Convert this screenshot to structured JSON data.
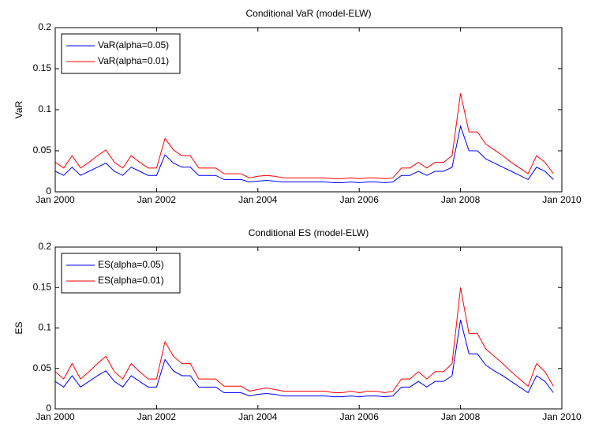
{
  "chart_data": [
    {
      "type": "line",
      "title": "Conditional VaR (model-ELW)",
      "y_label": "VaR",
      "x": [
        "2000-01",
        "2000-03",
        "2000-05",
        "2000-07",
        "2000-09",
        "2000-11",
        "2001-01",
        "2001-03",
        "2001-05",
        "2001-07",
        "2001-09",
        "2001-11",
        "2002-01",
        "2002-03",
        "2002-05",
        "2002-07",
        "2002-09",
        "2002-11",
        "2003-01",
        "2003-03",
        "2003-05",
        "2003-07",
        "2003-09",
        "2003-11",
        "2004-01",
        "2004-03",
        "2004-05",
        "2004-07",
        "2004-09",
        "2004-11",
        "2005-01",
        "2005-03",
        "2005-05",
        "2005-07",
        "2005-09",
        "2005-11",
        "2006-01",
        "2006-03",
        "2006-05",
        "2006-07",
        "2006-09",
        "2006-11",
        "2007-01",
        "2007-03",
        "2007-05",
        "2007-07",
        "2007-09",
        "2007-11",
        "2008-01",
        "2008-03",
        "2008-05",
        "2008-07",
        "2008-09",
        "2008-11",
        "2009-01",
        "2009-03",
        "2009-05",
        "2009-07",
        "2009-09",
        "2009-11"
      ],
      "series": [
        {
          "name": "VaR(alpha=0.05)",
          "color": "#0000ff",
          "values": [
            0.025,
            0.02,
            0.03,
            0.02,
            0.025,
            0.03,
            0.035,
            0.025,
            0.02,
            0.03,
            0.025,
            0.02,
            0.02,
            0.045,
            0.035,
            0.03,
            0.03,
            0.02,
            0.02,
            0.02,
            0.015,
            0.015,
            0.015,
            0.012,
            0.013,
            0.014,
            0.013,
            0.012,
            0.012,
            0.012,
            0.012,
            0.012,
            0.012,
            0.011,
            0.011,
            0.012,
            0.011,
            0.012,
            0.012,
            0.011,
            0.012,
            0.02,
            0.02,
            0.025,
            0.02,
            0.025,
            0.025,
            0.03,
            0.08,
            0.05,
            0.05,
            0.04,
            0.035,
            0.03,
            0.025,
            0.02,
            0.015,
            0.03,
            0.025,
            0.015
          ]
        },
        {
          "name": "VaR(alpha=0.01)",
          "color": "#ff0000",
          "values": [
            0.036,
            0.029,
            0.044,
            0.029,
            0.036,
            0.044,
            0.051,
            0.036,
            0.029,
            0.044,
            0.036,
            0.029,
            0.029,
            0.065,
            0.051,
            0.044,
            0.044,
            0.029,
            0.029,
            0.029,
            0.022,
            0.022,
            0.022,
            0.017,
            0.019,
            0.02,
            0.019,
            0.017,
            0.017,
            0.017,
            0.017,
            0.017,
            0.017,
            0.016,
            0.016,
            0.017,
            0.016,
            0.017,
            0.017,
            0.016,
            0.017,
            0.029,
            0.029,
            0.036,
            0.029,
            0.036,
            0.036,
            0.044,
            0.12,
            0.073,
            0.073,
            0.058,
            0.051,
            0.044,
            0.036,
            0.029,
            0.022,
            0.044,
            0.036,
            0.022
          ]
        }
      ],
      "xlim": [
        "2000-01",
        "2010-01"
      ],
      "xticks": [
        {
          "value": "2000-01",
          "label": "Jan 2000"
        },
        {
          "value": "2002-01",
          "label": "Jan 2002"
        },
        {
          "value": "2004-01",
          "label": "Jan 2004"
        },
        {
          "value": "2006-01",
          "label": "Jan 2006"
        },
        {
          "value": "2008-01",
          "label": "Jan 2008"
        },
        {
          "value": "2010-01",
          "label": "Jan 2010"
        }
      ],
      "ylim": [
        0,
        0.2
      ],
      "yticks": [
        0,
        0.05,
        0.1,
        0.15,
        0.2
      ],
      "legend": "upper left"
    },
    {
      "type": "line",
      "title": "Conditional ES (model-ELW)",
      "y_label": "ES",
      "x": [
        "2000-01",
        "2000-03",
        "2000-05",
        "2000-07",
        "2000-09",
        "2000-11",
        "2001-01",
        "2001-03",
        "2001-05",
        "2001-07",
        "2001-09",
        "2001-11",
        "2002-01",
        "2002-03",
        "2002-05",
        "2002-07",
        "2002-09",
        "2002-11",
        "2003-01",
        "2003-03",
        "2003-05",
        "2003-07",
        "2003-09",
        "2003-11",
        "2004-01",
        "2004-03",
        "2004-05",
        "2004-07",
        "2004-09",
        "2004-11",
        "2005-01",
        "2005-03",
        "2005-05",
        "2005-07",
        "2005-09",
        "2005-11",
        "2006-01",
        "2006-03",
        "2006-05",
        "2006-07",
        "2006-09",
        "2006-11",
        "2007-01",
        "2007-03",
        "2007-05",
        "2007-07",
        "2007-09",
        "2007-11",
        "2008-01",
        "2008-03",
        "2008-05",
        "2008-07",
        "2008-09",
        "2008-11",
        "2009-01",
        "2009-03",
        "2009-05",
        "2009-07",
        "2009-09",
        "2009-11"
      ],
      "series": [
        {
          "name": "ES(alpha=0.05)",
          "color": "#0000ff",
          "values": [
            0.034,
            0.027,
            0.041,
            0.027,
            0.034,
            0.041,
            0.047,
            0.034,
            0.027,
            0.041,
            0.034,
            0.027,
            0.027,
            0.061,
            0.047,
            0.041,
            0.041,
            0.027,
            0.027,
            0.027,
            0.02,
            0.02,
            0.02,
            0.016,
            0.018,
            0.019,
            0.018,
            0.016,
            0.016,
            0.016,
            0.016,
            0.016,
            0.016,
            0.015,
            0.015,
            0.016,
            0.015,
            0.016,
            0.016,
            0.015,
            0.016,
            0.027,
            0.027,
            0.034,
            0.027,
            0.034,
            0.034,
            0.041,
            0.11,
            0.068,
            0.068,
            0.054,
            0.047,
            0.041,
            0.034,
            0.027,
            0.02,
            0.041,
            0.034,
            0.02
          ]
        },
        {
          "name": "ES(alpha=0.01)",
          "color": "#ff0000",
          "values": [
            0.046,
            0.037,
            0.056,
            0.037,
            0.046,
            0.056,
            0.065,
            0.046,
            0.037,
            0.056,
            0.046,
            0.037,
            0.037,
            0.083,
            0.065,
            0.056,
            0.056,
            0.037,
            0.037,
            0.037,
            0.028,
            0.028,
            0.028,
            0.022,
            0.024,
            0.026,
            0.024,
            0.022,
            0.022,
            0.022,
            0.022,
            0.022,
            0.022,
            0.02,
            0.02,
            0.022,
            0.02,
            0.022,
            0.022,
            0.02,
            0.022,
            0.037,
            0.037,
            0.046,
            0.037,
            0.046,
            0.046,
            0.056,
            0.15,
            0.093,
            0.093,
            0.074,
            0.065,
            0.056,
            0.046,
            0.037,
            0.028,
            0.056,
            0.046,
            0.028
          ]
        }
      ],
      "xlim": [
        "2000-01",
        "2010-01"
      ],
      "xticks": [
        {
          "value": "2000-01",
          "label": "Jan 2000"
        },
        {
          "value": "2002-01",
          "label": "Jan 2002"
        },
        {
          "value": "2004-01",
          "label": "Jan 2004"
        },
        {
          "value": "2006-01",
          "label": "Jan 2006"
        },
        {
          "value": "2008-01",
          "label": "Jan 2008"
        },
        {
          "value": "2010-01",
          "label": "Jan 2010"
        }
      ],
      "ylim": [
        0,
        0.2
      ],
      "yticks": [
        0,
        0.05,
        0.1,
        0.15,
        0.2
      ],
      "legend": "upper left"
    }
  ]
}
